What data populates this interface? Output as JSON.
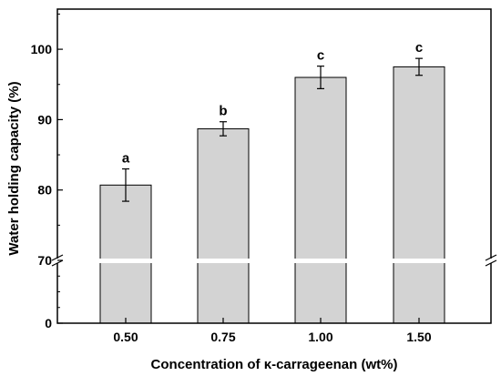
{
  "chart_data": {
    "type": "bar",
    "title": "",
    "xlabel": "Concentration of κ-carrageenan (wt%)",
    "ylabel": "Water holding capacity (%)",
    "categories": [
      "0.50",
      "0.75",
      "1.00",
      "1.50"
    ],
    "values": [
      80.7,
      88.7,
      96.0,
      97.5
    ],
    "errors": [
      2.3,
      1.0,
      1.6,
      1.2
    ],
    "significance_letters": [
      "a",
      "b",
      "c",
      "c"
    ],
    "axis_break": [
      0,
      70
    ],
    "lower_ticks": [
      "0"
    ],
    "upper_ticks": [
      "70",
      "80",
      "90",
      "100"
    ],
    "ylim_upper": [
      70,
      105
    ],
    "bar_color": "#d3d3d3",
    "grid": false
  }
}
